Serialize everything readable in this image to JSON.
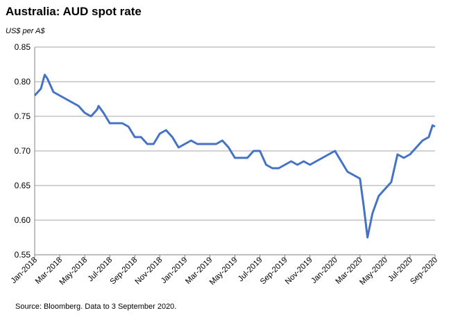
{
  "chart_data": {
    "type": "line",
    "title": "Australia: AUD spot rate",
    "subtitle": "US$ per A$",
    "source": "Source: Bloomberg.  Data to 3 September 2020.",
    "x": [
      0,
      0.5,
      0.8,
      1,
      1.5,
      2,
      2.5,
      3,
      3.5,
      4,
      4.5,
      5,
      5.1,
      5.5,
      6,
      6.5,
      7,
      7.5,
      8,
      8.5,
      9,
      9.5,
      10,
      10.5,
      11,
      11.5,
      12,
      12.5,
      13,
      13.5,
      14,
      14.5,
      15,
      15.5,
      16,
      16.5,
      17,
      17.5,
      18,
      18.5,
      19,
      19.5,
      20,
      20.5,
      21,
      21.5,
      22,
      22.5,
      23,
      23.5,
      24,
      24.5,
      25,
      25.5,
      26,
      26.3,
      26.6,
      27,
      27.5,
      28,
      28.5,
      29,
      29.5,
      30,
      30.5,
      31,
      31.5,
      31.8,
      32
    ],
    "series": [
      {
        "name": "AUD spot rate",
        "color": "#4472c4",
        "values": [
          0.78,
          0.79,
          0.81,
          0.805,
          0.785,
          0.78,
          0.775,
          0.77,
          0.765,
          0.755,
          0.75,
          0.76,
          0.765,
          0.755,
          0.74,
          0.74,
          0.74,
          0.735,
          0.72,
          0.72,
          0.71,
          0.71,
          0.725,
          0.73,
          0.72,
          0.705,
          0.71,
          0.715,
          0.71,
          0.71,
          0.71,
          0.71,
          0.715,
          0.705,
          0.69,
          0.69,
          0.69,
          0.7,
          0.7,
          0.68,
          0.675,
          0.675,
          0.68,
          0.685,
          0.68,
          0.685,
          0.68,
          0.685,
          0.69,
          0.695,
          0.7,
          0.685,
          0.67,
          0.665,
          0.66,
          0.62,
          0.575,
          0.61,
          0.635,
          0.645,
          0.655,
          0.695,
          0.69,
          0.695,
          0.705,
          0.715,
          0.72,
          0.737,
          0.735
        ]
      }
    ],
    "xlim": [
      0,
      32
    ],
    "xticks": [
      {
        "value": 0,
        "label": "Jan-2018"
      },
      {
        "value": 2,
        "label": "Mar-2018"
      },
      {
        "value": 4,
        "label": "May-2018"
      },
      {
        "value": 6,
        "label": "Jul-2018"
      },
      {
        "value": 8,
        "label": "Sep-2018"
      },
      {
        "value": 10,
        "label": "Nov-2018"
      },
      {
        "value": 12,
        "label": "Jan-2019"
      },
      {
        "value": 14,
        "label": "Mar-2019"
      },
      {
        "value": 16,
        "label": "May-2019"
      },
      {
        "value": 18,
        "label": "Jul-2019"
      },
      {
        "value": 20,
        "label": "Sep-2019"
      },
      {
        "value": 22,
        "label": "Nov-2019"
      },
      {
        "value": 24,
        "label": "Jan-2020"
      },
      {
        "value": 26,
        "label": "Mar-2020"
      },
      {
        "value": 28,
        "label": "May-2020"
      },
      {
        "value": 30,
        "label": "Jul-2020"
      },
      {
        "value": 32,
        "label": "Sep-2020"
      }
    ],
    "ylim": [
      0.55,
      0.85
    ],
    "yticks": [
      0.55,
      {
        "value": 0.6,
        "label": "0.60"
      },
      0.65,
      {
        "value": 0.7,
        "label": "0.70"
      },
      0.75,
      {
        "value": 0.8,
        "label": "0.80"
      },
      0.85
    ],
    "grid": true
  }
}
